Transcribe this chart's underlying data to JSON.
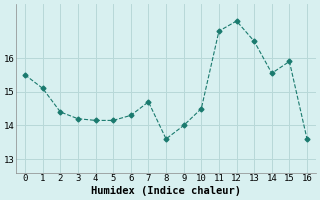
{
  "x": [
    0,
    1,
    2,
    3,
    4,
    5,
    6,
    7,
    8,
    9,
    10,
    11,
    12,
    13,
    14,
    15,
    16
  ],
  "y": [
    15.5,
    15.1,
    14.4,
    14.2,
    14.15,
    14.15,
    14.3,
    14.7,
    13.6,
    14.0,
    14.5,
    16.8,
    17.1,
    16.5,
    15.55,
    15.9,
    13.6
  ],
  "line_color": "#1a7a6e",
  "marker": "D",
  "marker_size": 2.5,
  "bg_color": "#d8f0f0",
  "grid_color": "#b8d8d8",
  "xlabel": "Humidex (Indice chaleur)",
  "xlabel_fontsize": 7.5,
  "ytick_labels": [
    "13",
    "14",
    "15",
    "16"
  ],
  "yticks": [
    13,
    14,
    15,
    16
  ],
  "xticks": [
    0,
    1,
    2,
    3,
    4,
    5,
    6,
    7,
    8,
    9,
    10,
    11,
    12,
    13,
    14,
    15,
    16
  ],
  "ylim": [
    12.6,
    17.6
  ],
  "xlim": [
    -0.5,
    16.5
  ]
}
